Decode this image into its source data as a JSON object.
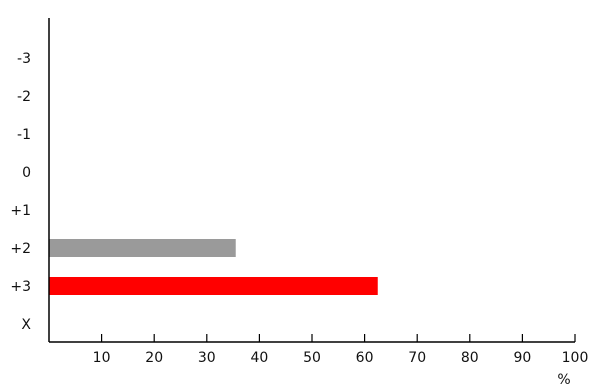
{
  "chart_data": {
    "type": "bar",
    "orientation": "horizontal",
    "categories": [
      "-3",
      "-2",
      "-1",
      "0",
      "+1",
      "+2",
      "+3",
      "X"
    ],
    "values": [
      0,
      0,
      0,
      0,
      0,
      35.5,
      62.5,
      0
    ],
    "bar_colors": [
      "#9a9a9a",
      "#9a9a9a",
      "#9a9a9a",
      "#9a9a9a",
      "#9a9a9a",
      "#9a9a9a",
      "#ff0000",
      "#9a9a9a"
    ],
    "xlim": [
      0,
      100
    ],
    "xticks": [
      "10",
      "20",
      "30",
      "40",
      "50",
      "60",
      "70",
      "80",
      "90",
      "100"
    ],
    "xlabel": "%",
    "ylabel": "",
    "title": "",
    "grid": false,
    "legend": "none"
  }
}
